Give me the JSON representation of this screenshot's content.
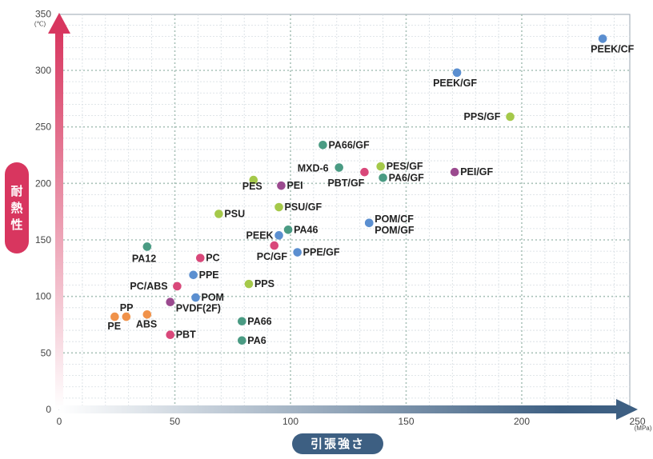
{
  "chart_data": {
    "type": "scatter",
    "xlabel": "引張強さ",
    "ylabel": "耐熱性",
    "x_unit": "(MPa)",
    "y_unit": "(℃)",
    "xlim": [
      0,
      250
    ],
    "ylim": [
      0,
      350
    ],
    "x_ticks": [
      0,
      50,
      100,
      150,
      200,
      250
    ],
    "y_ticks": [
      0,
      50,
      100,
      150,
      200,
      250,
      300,
      350
    ],
    "grid": true,
    "colors": {
      "blue": "#5b8fd0",
      "green": "#4a9b83",
      "lime": "#a5c94a",
      "pink": "#d9487a",
      "purple": "#9b4a8f",
      "orange": "#f0924a"
    },
    "points": [
      {
        "label": "PEEK/CF",
        "x": 235,
        "y": 328,
        "color": "blue"
      },
      {
        "label": "PEEK/GF",
        "x": 172,
        "y": 298,
        "color": "blue"
      },
      {
        "label": "PPS/GF",
        "x": 195,
        "y": 259,
        "color": "lime"
      },
      {
        "label": "PA66/GF",
        "x": 114,
        "y": 234,
        "color": "green"
      },
      {
        "label": "MXD-6",
        "x": 121,
        "y": 214,
        "color": "green"
      },
      {
        "label": "PES/GF",
        "x": 139,
        "y": 215,
        "color": "lime"
      },
      {
        "label": "PBT/GF",
        "x": 132,
        "y": 210,
        "color": "pink"
      },
      {
        "label": "PA6/GF",
        "x": 140,
        "y": 205,
        "color": "green"
      },
      {
        "label": "PEI/GF",
        "x": 171,
        "y": 210,
        "color": "purple"
      },
      {
        "label": "PES",
        "x": 84,
        "y": 203,
        "color": "lime"
      },
      {
        "label": "PEI",
        "x": 96,
        "y": 198,
        "color": "purple"
      },
      {
        "label": "PSU",
        "x": 69,
        "y": 173,
        "color": "lime"
      },
      {
        "label": "PSU/GF",
        "x": 95,
        "y": 179,
        "color": "lime"
      },
      {
        "label": "POM/CF",
        "x": 134,
        "y": 165,
        "color": "blue"
      },
      {
        "label": "POM/GF",
        "x": 134,
        "y": 165,
        "color": "blue"
      },
      {
        "label": "PEEK",
        "x": 95,
        "y": 154,
        "color": "blue"
      },
      {
        "label": "PA46",
        "x": 99,
        "y": 159,
        "color": "green"
      },
      {
        "label": "PA12",
        "x": 38,
        "y": 144,
        "color": "green"
      },
      {
        "label": "PC/GF",
        "x": 93,
        "y": 145,
        "color": "pink"
      },
      {
        "label": "PPE/GF",
        "x": 103,
        "y": 139,
        "color": "blue"
      },
      {
        "label": "PC",
        "x": 61,
        "y": 134,
        "color": "pink"
      },
      {
        "label": "PPE",
        "x": 58,
        "y": 119,
        "color": "blue"
      },
      {
        "label": "PC/ABS",
        "x": 51,
        "y": 109,
        "color": "pink"
      },
      {
        "label": "PPS",
        "x": 82,
        "y": 111,
        "color": "lime"
      },
      {
        "label": "POM",
        "x": 59,
        "y": 99,
        "color": "blue"
      },
      {
        "label": "PVDF(2F)",
        "x": 48,
        "y": 95,
        "color": "purple"
      },
      {
        "label": "PP",
        "x": 29,
        "y": 82,
        "color": "orange"
      },
      {
        "label": "PE",
        "x": 24,
        "y": 82,
        "color": "orange"
      },
      {
        "label": "ABS",
        "x": 38,
        "y": 84,
        "color": "orange"
      },
      {
        "label": "PA66",
        "x": 79,
        "y": 78,
        "color": "green"
      },
      {
        "label": "PBT",
        "x": 48,
        "y": 66,
        "color": "pink"
      },
      {
        "label": "PA6",
        "x": 79,
        "y": 61,
        "color": "green"
      }
    ]
  }
}
